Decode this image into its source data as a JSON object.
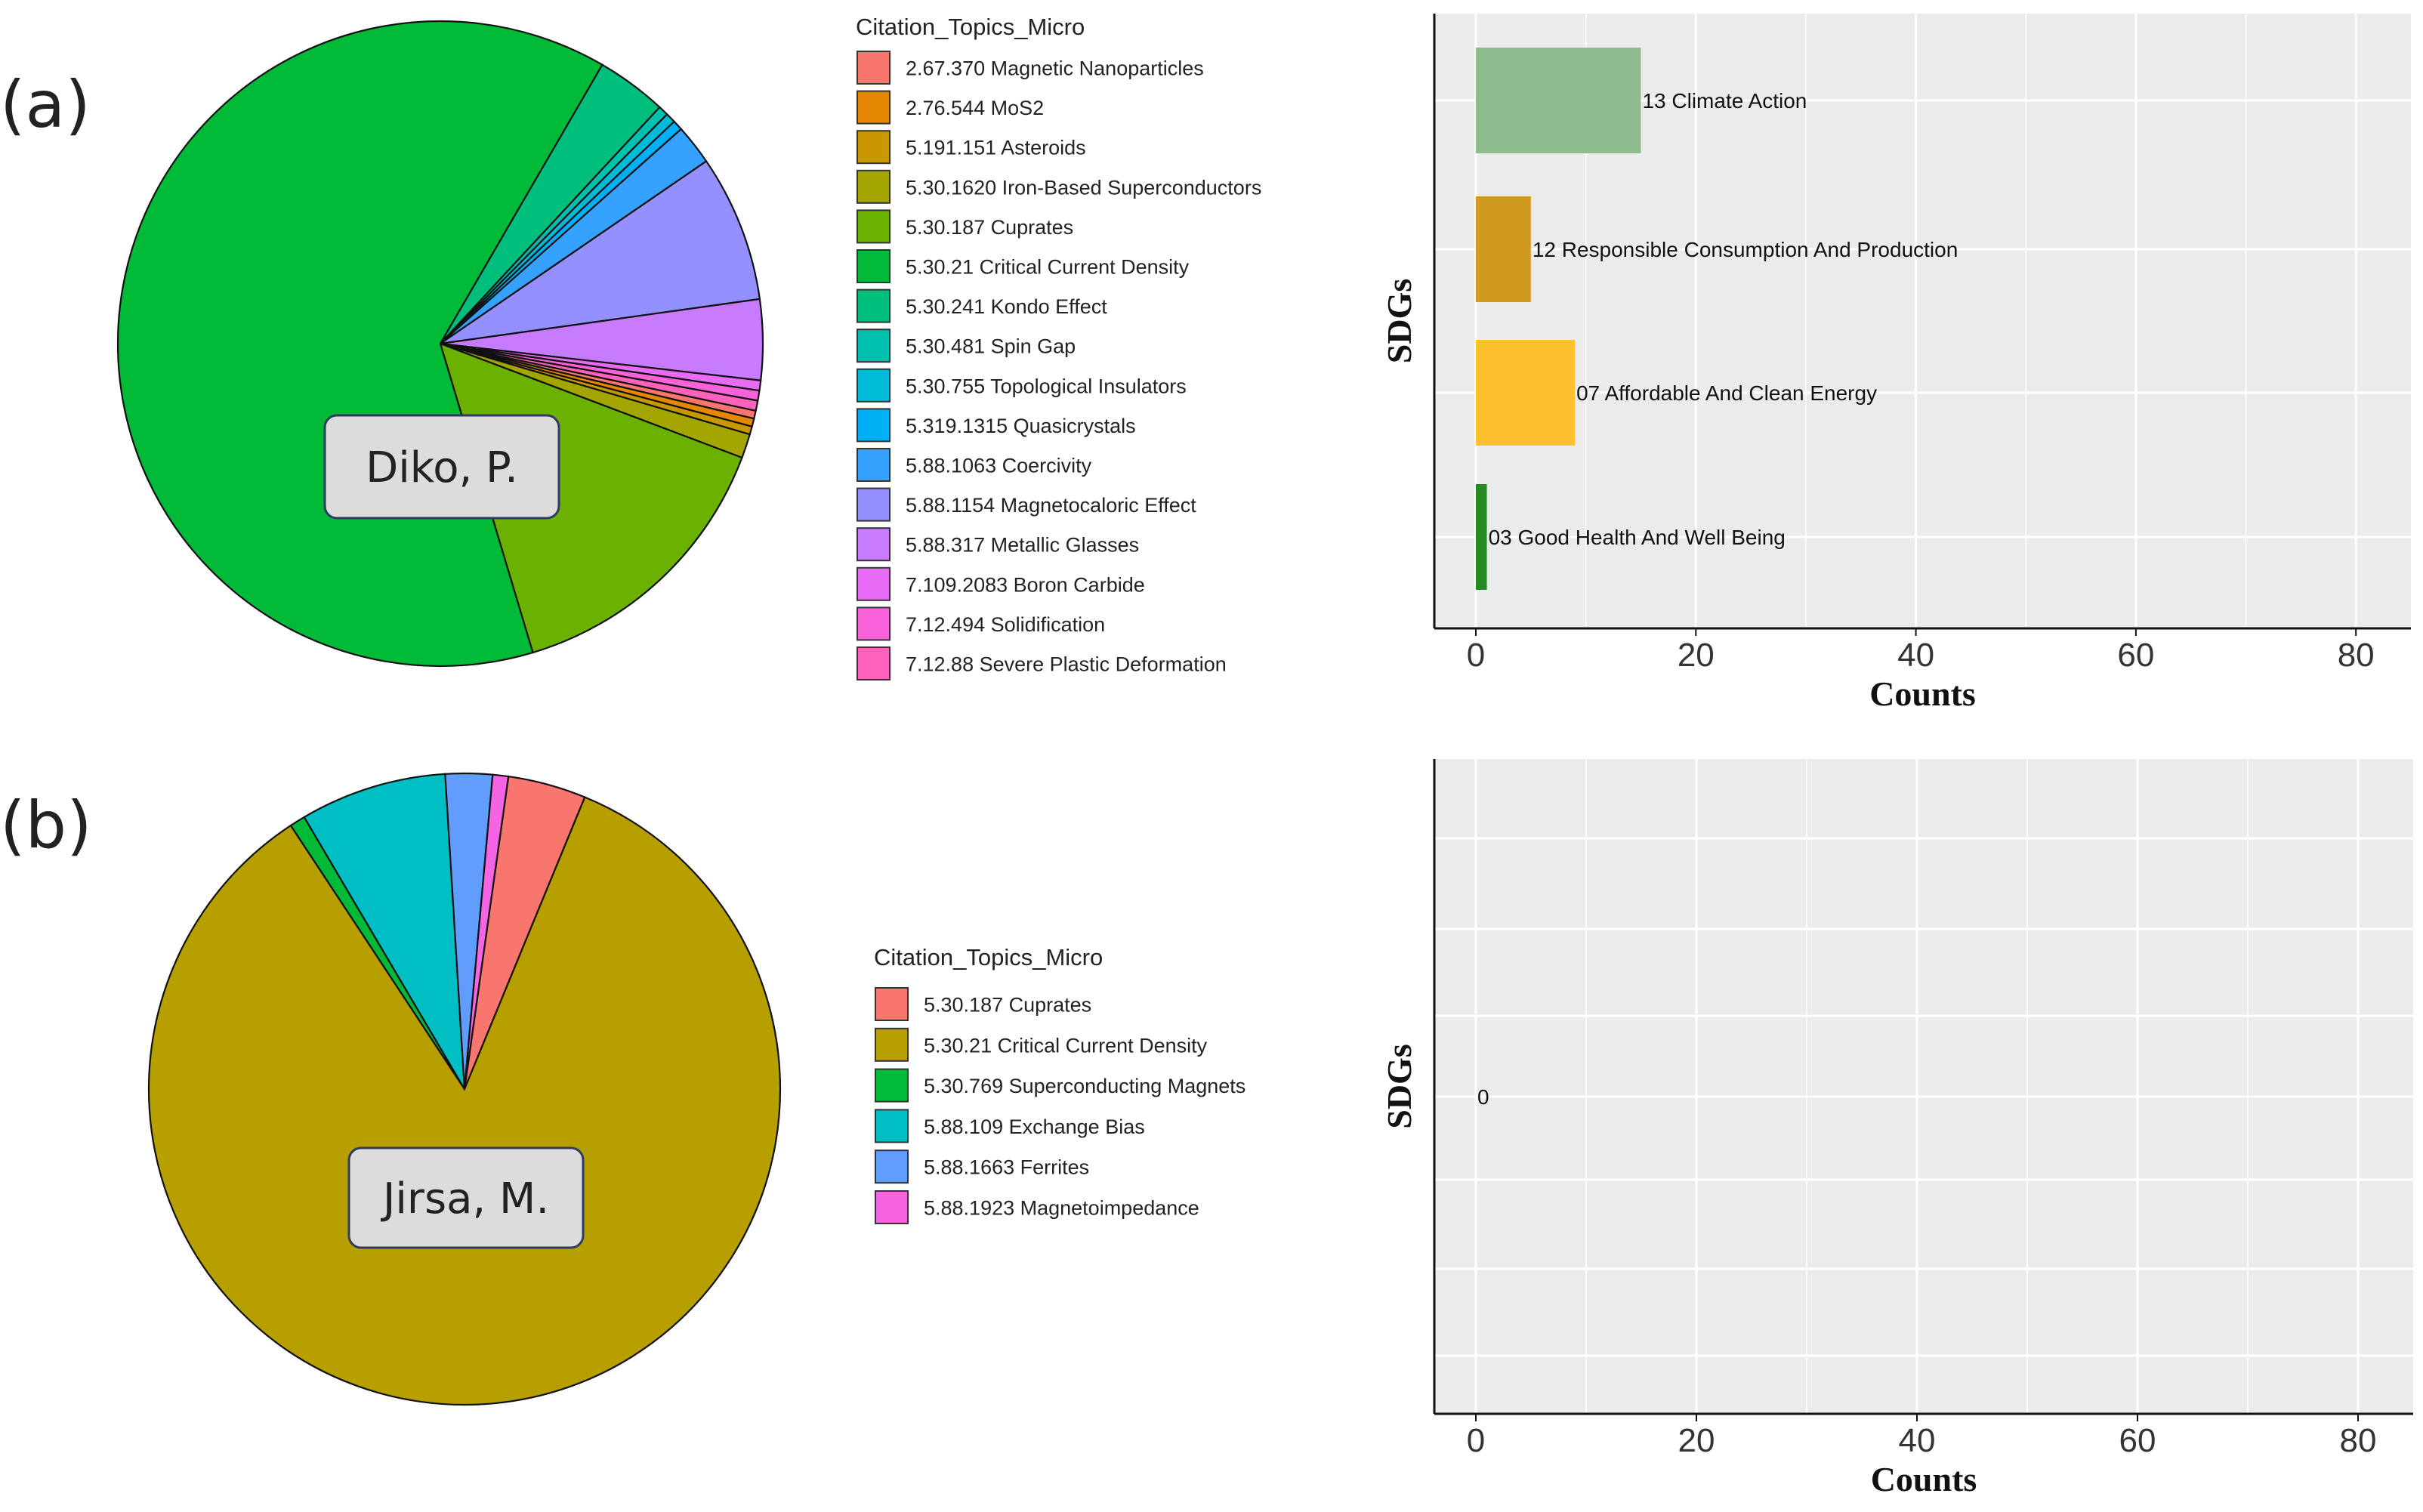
{
  "panels": [
    {
      "letter": "(a)",
      "author": "Diko, P."
    },
    {
      "letter": "(b)",
      "author": "Jirsa, M."
    }
  ],
  "legend_title": "Citation_Topics_Micro",
  "chart_data": [
    {
      "type": "pie",
      "panel": "(a)",
      "label": "Diko, P.",
      "legend_title": "Citation_Topics_Micro",
      "slices": [
        {
          "name": "2.67.370 Magnetic Nanoparticles",
          "value": 0.4,
          "color": "#F8766D"
        },
        {
          "name": "2.76.544 MoS2",
          "value": 0.4,
          "color": "#E58700"
        },
        {
          "name": "5.191.151 Asteroids",
          "value": 0.4,
          "color": "#C99800"
        },
        {
          "name": "5.30.1620 Iron-Based Superconductors",
          "value": 1.2,
          "color": "#A3A500"
        },
        {
          "name": "5.30.187 Cuprates",
          "value": 14.5,
          "color": "#6BB100"
        },
        {
          "name": "5.30.21 Critical Current Density",
          "value": 62.5,
          "color": "#00BA38"
        },
        {
          "name": "5.30.241 Kondo Effect",
          "value": 3.5,
          "color": "#00BF7D"
        },
        {
          "name": "5.30.481 Spin Gap",
          "value": 0.5,
          "color": "#00C0AF"
        },
        {
          "name": "5.30.755 Topological Insulators",
          "value": 0.5,
          "color": "#00BCD8"
        },
        {
          "name": "5.319.1315 Quasicrystals",
          "value": 0.5,
          "color": "#00B0F6"
        },
        {
          "name": "5.88.1063 Coercivity",
          "value": 2.0,
          "color": "#35A2FF"
        },
        {
          "name": "5.88.1154 Magnetocaloric Effect",
          "value": 7.3,
          "color": "#9590FF"
        },
        {
          "name": "5.88.317 Metallic Glasses",
          "value": 4.0,
          "color": "#C77CFF"
        },
        {
          "name": "7.109.2083 Boron Carbide",
          "value": 0.5,
          "color": "#E76BF3"
        },
        {
          "name": "7.12.494 Solidification",
          "value": 0.5,
          "color": "#FA62DB"
        },
        {
          "name": "7.12.88 Severe Plastic Deformation",
          "value": 0.5,
          "color": "#FF62BC"
        }
      ]
    },
    {
      "type": "bar",
      "orientation": "horizontal",
      "panel": "(a)",
      "xlabel": "Counts",
      "ylabel": "SDGs",
      "xlim": [
        0,
        85
      ],
      "xticks": [
        0,
        20,
        40,
        60,
        80
      ],
      "grid": true,
      "bars": [
        {
          "label": "13 Climate Action",
          "value": 15,
          "color": "#8FBC8F"
        },
        {
          "label": "12 Responsible Consumption And Production",
          "value": 5,
          "color": "#D09A20"
        },
        {
          "label": "07 Affordable And Clean Energy",
          "value": 9,
          "color": "#FCC12D"
        },
        {
          "label": "03 Good Health And Well Being",
          "value": 1,
          "color": "#238B22"
        }
      ]
    },
    {
      "type": "pie",
      "panel": "(b)",
      "label": "Jirsa, M.",
      "legend_title": "Citation_Topics_Micro",
      "slices": [
        {
          "name": "5.30.187 Cuprates",
          "value": 4.0,
          "color": "#F8766D"
        },
        {
          "name": "5.30.21 Critical Current Density",
          "value": 84.5,
          "color": "#B79F00"
        },
        {
          "name": "5.30.769 Superconducting Magnets",
          "value": 0.8,
          "color": "#00BA38"
        },
        {
          "name": "5.88.109 Exchange Bias",
          "value": 7.5,
          "color": "#00BFC4"
        },
        {
          "name": "5.88.1663 Ferrites",
          "value": 2.4,
          "color": "#619CFF"
        },
        {
          "name": "5.88.1923 Magnetoimpedance",
          "value": 0.8,
          "color": "#F564E3"
        }
      ]
    },
    {
      "type": "bar",
      "orientation": "horizontal",
      "panel": "(b)",
      "xlabel": "Counts",
      "ylabel": "SDGs",
      "xlim": [
        0,
        85
      ],
      "xticks": [
        0,
        20,
        40,
        60,
        80
      ],
      "grid": true,
      "bars": [
        {
          "label": "0",
          "value": 0,
          "color": "#888888"
        }
      ]
    }
  ]
}
